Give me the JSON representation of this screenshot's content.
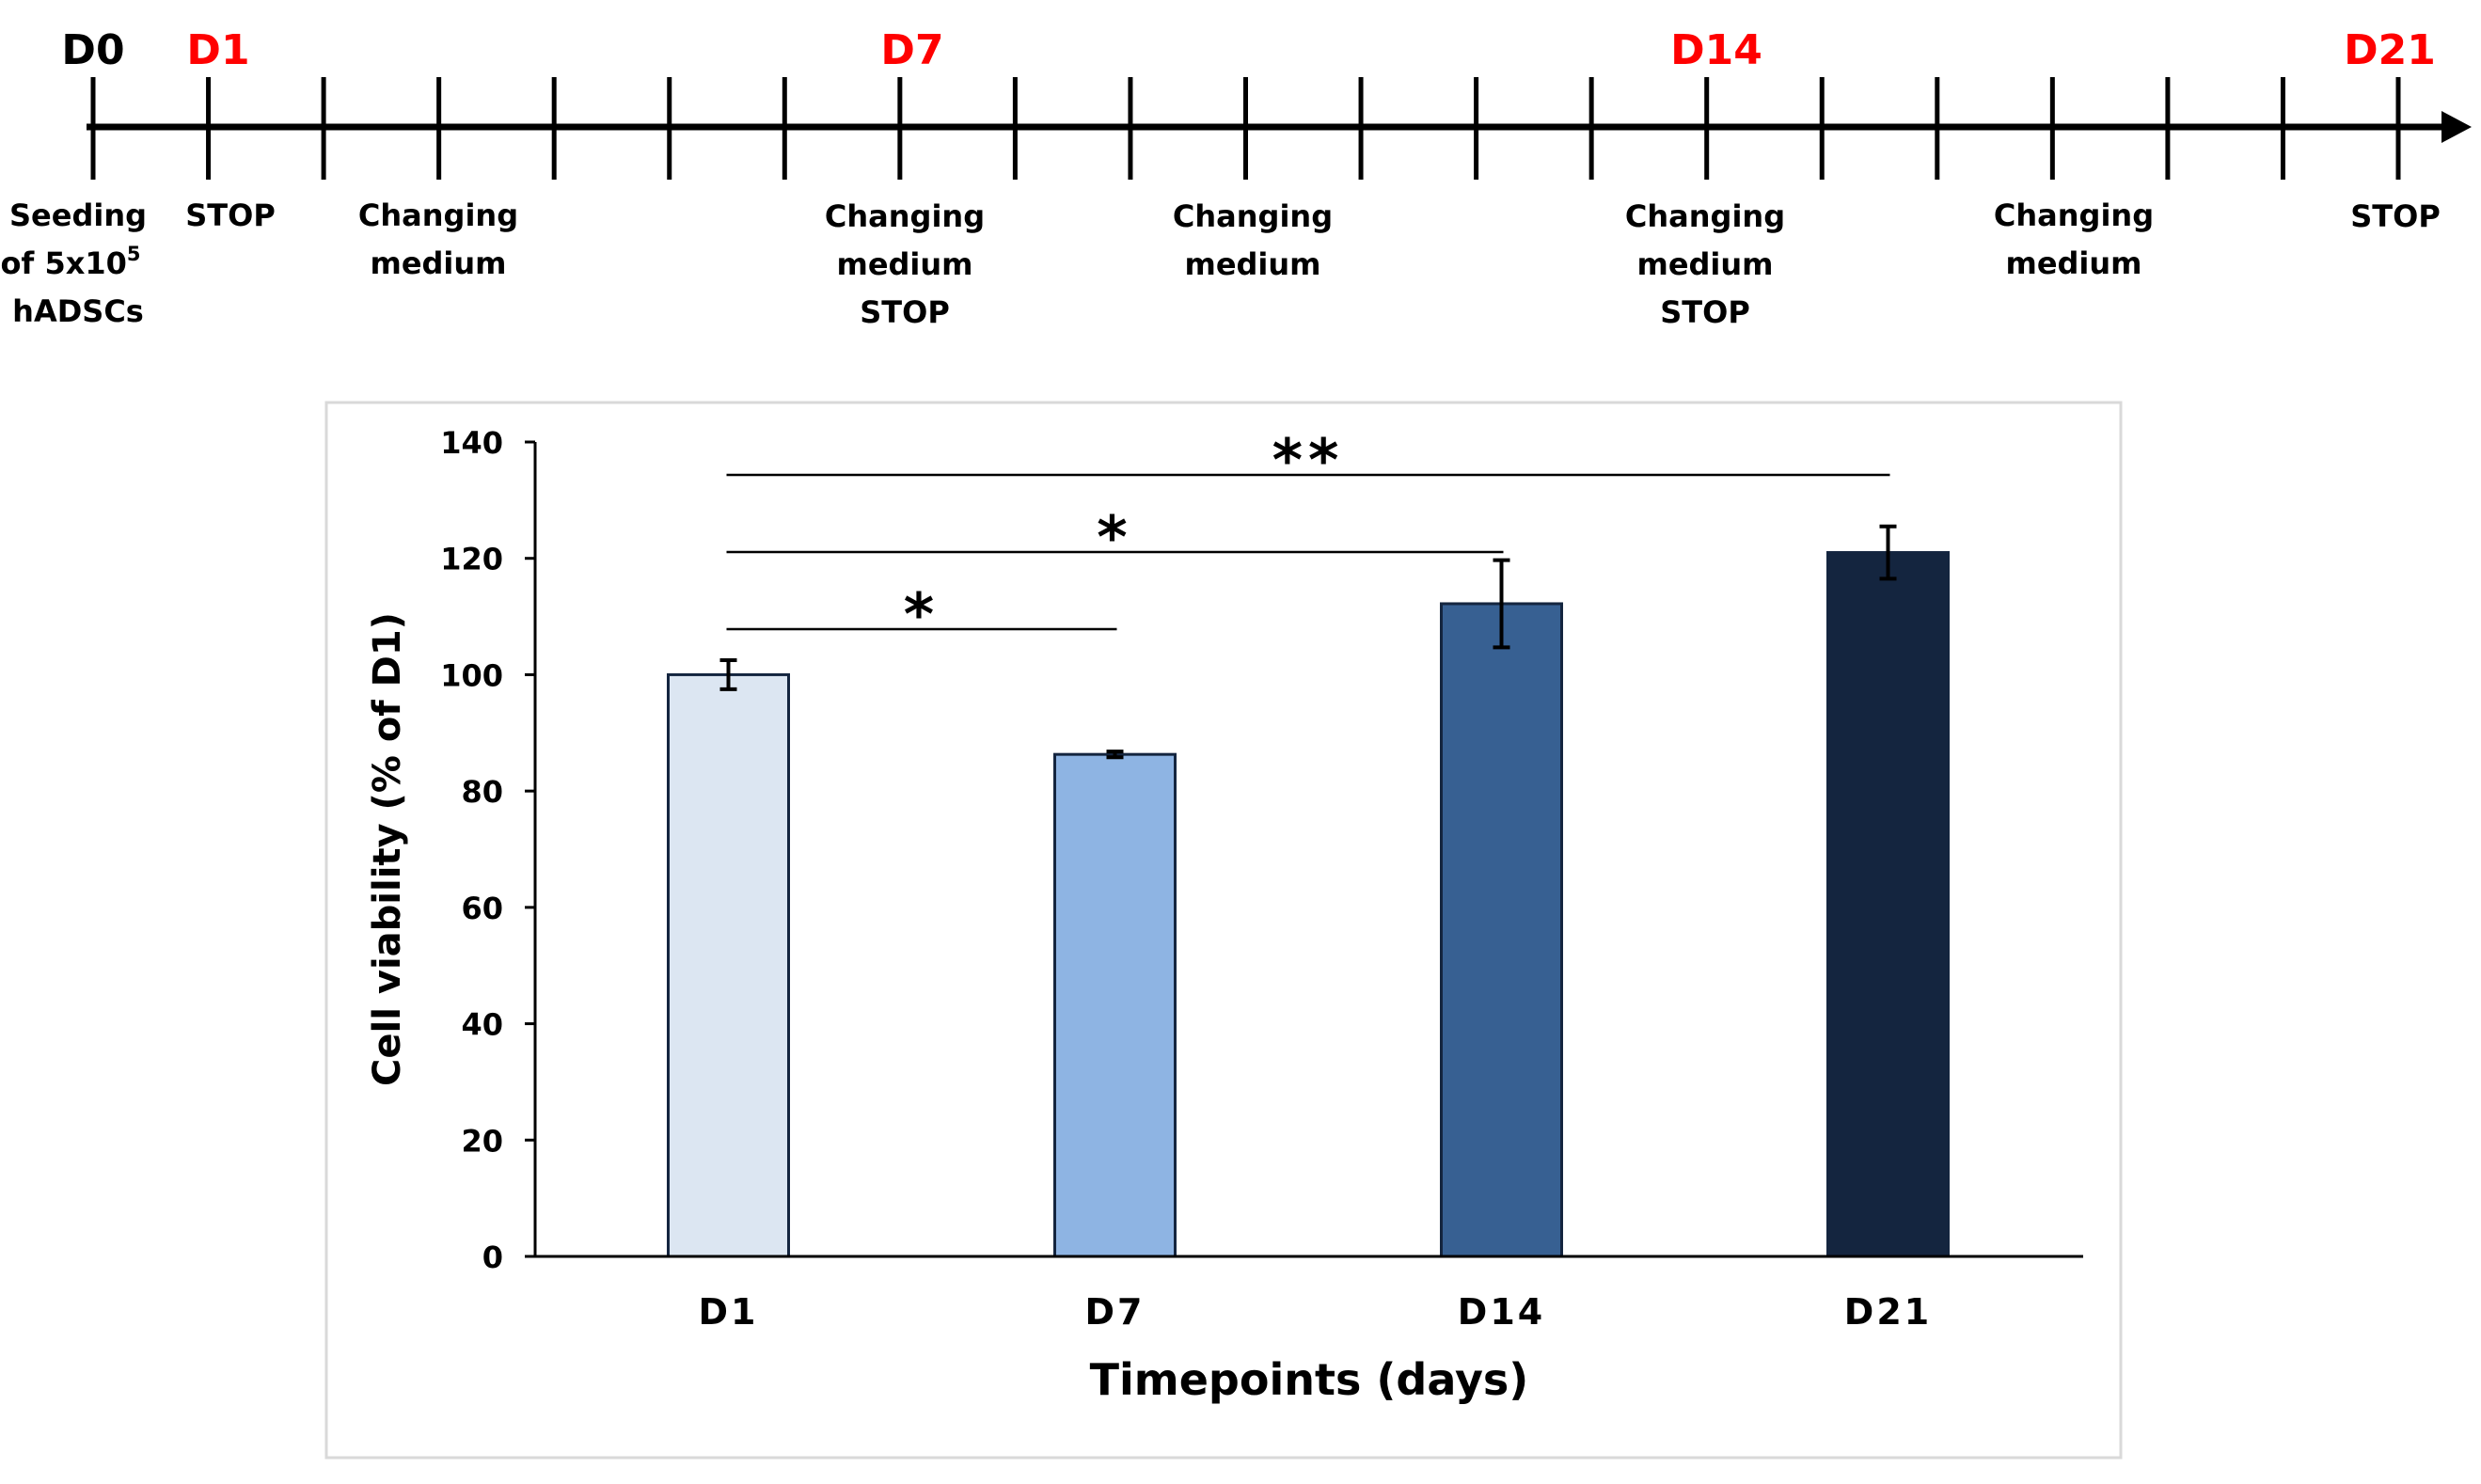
{
  "timeline": {
    "day_labels": [
      {
        "label": "D0",
        "color": "#000000"
      },
      {
        "label": "D1",
        "color": "#ff0000"
      },
      {
        "label": "D7",
        "color": "#ff0000"
      },
      {
        "label": "D14",
        "color": "#ff0000"
      },
      {
        "label": "D21",
        "color": "#ff0000"
      }
    ],
    "tick_count": 21,
    "events": [
      {
        "lines": [
          "Seeding",
          "of 5x10",
          "hADSCs"
        ],
        "superscript": "5"
      },
      {
        "lines": [
          "STOP"
        ]
      },
      {
        "lines": [
          "Changing",
          "medium"
        ]
      },
      {
        "lines": [
          "Changing",
          "medium",
          "STOP"
        ]
      },
      {
        "lines": [
          "Changing",
          "medium"
        ]
      },
      {
        "lines": [
          "Changing",
          "medium",
          "STOP"
        ]
      },
      {
        "lines": [
          "Changing",
          "medium"
        ]
      },
      {
        "lines": [
          "STOP"
        ]
      }
    ]
  },
  "chart_data": {
    "type": "bar",
    "title": "",
    "categories": [
      "D1",
      "D7",
      "D14",
      "D21"
    ],
    "values": [
      100,
      86.3,
      112.2,
      121
    ],
    "errors": [
      2.5,
      0.5,
      7.5,
      4.5
    ],
    "colors": [
      "#dce6f2",
      "#8eb4e3",
      "#376092",
      "#14253f"
    ],
    "xlabel": "Timepoints (days)",
    "ylabel": "Cell viability (% of D1)",
    "ylim": [
      0,
      140
    ],
    "yticks": [
      0,
      20,
      40,
      60,
      80,
      100,
      120,
      140
    ],
    "significance": [
      {
        "from": "D1",
        "to": "D7",
        "label": "*"
      },
      {
        "from": "D1",
        "to": "D14",
        "label": "*"
      },
      {
        "from": "D1",
        "to": "D21",
        "label": "**"
      }
    ]
  }
}
